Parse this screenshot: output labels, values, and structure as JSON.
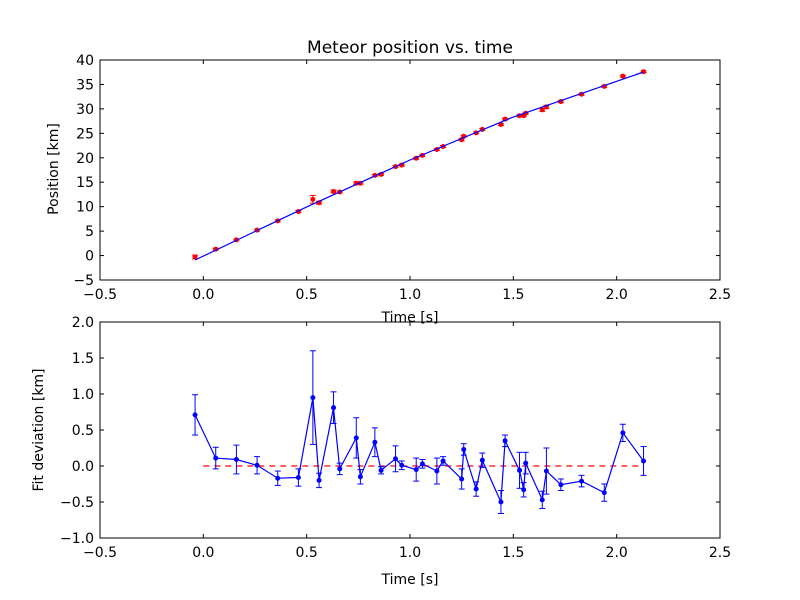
{
  "chart_data": [
    {
      "type": "scatter",
      "title": "Meteor position vs. time",
      "xlabel": "Time [s]",
      "ylabel": "Position [km]",
      "xlim": [
        -0.5,
        2.5
      ],
      "ylim": [
        -5,
        40
      ],
      "xticks": [
        -0.5,
        0.0,
        0.5,
        1.0,
        1.5,
        2.0,
        2.5
      ],
      "xtick_labels": [
        "−0.5",
        "0.0",
        "0.5",
        "1.0",
        "1.5",
        "2.0",
        "2.5"
      ],
      "yticks": [
        -5,
        0,
        5,
        10,
        15,
        20,
        25,
        30,
        35,
        40
      ],
      "ytick_labels": [
        "−5",
        "0",
        "5",
        "10",
        "15",
        "20",
        "25",
        "30",
        "35",
        "40"
      ],
      "grid": false,
      "series": [
        {
          "kind": "errorbar-points",
          "color": "#ff0000",
          "x": [
            -0.04,
            0.06,
            0.16,
            0.26,
            0.36,
            0.46,
            0.53,
            0.56,
            0.63,
            0.66,
            0.74,
            0.76,
            0.83,
            0.86,
            0.93,
            0.96,
            1.03,
            1.06,
            1.13,
            1.16,
            1.25,
            1.26,
            1.32,
            1.35,
            1.44,
            1.46,
            1.53,
            1.55,
            1.56,
            1.64,
            1.66,
            1.73,
            1.83,
            1.94,
            2.03,
            2.13
          ],
          "y": [
            -0.3,
            1.3,
            3.2,
            5.2,
            7.1,
            9.0,
            11.5,
            10.8,
            13.1,
            13.0,
            14.8,
            14.8,
            16.4,
            16.6,
            18.2,
            18.5,
            19.9,
            20.5,
            21.7,
            22.3,
            23.7,
            24.4,
            25.1,
            25.8,
            26.8,
            27.9,
            28.6,
            28.6,
            29.1,
            29.8,
            30.4,
            31.5,
            33.0,
            34.6,
            36.7,
            37.6
          ],
          "yerr": [
            0.4,
            0.2,
            0.2,
            0.2,
            0.2,
            0.2,
            0.8,
            0.3,
            0.3,
            0.2,
            0.3,
            0.2,
            0.2,
            0.2,
            0.2,
            0.2,
            0.2,
            0.2,
            0.2,
            0.2,
            0.2,
            0.2,
            0.2,
            0.2,
            0.2,
            0.2,
            0.2,
            0.2,
            0.2,
            0.3,
            0.3,
            0.2,
            0.2,
            0.2,
            0.2,
            0.2
          ]
        },
        {
          "kind": "line",
          "color": "#0000ff",
          "x": [
            -0.04,
            0.5,
            1.0,
            1.5,
            2.13
          ],
          "y": [
            -0.9,
            9.95,
            19.55,
            28.35,
            37.55
          ]
        }
      ]
    },
    {
      "type": "line",
      "title": "",
      "xlabel": "Time [s]",
      "ylabel": "Fit deviation [km]",
      "xlim": [
        -0.5,
        2.5
      ],
      "ylim": [
        -1.0,
        2.0
      ],
      "xticks": [
        -0.5,
        0.0,
        0.5,
        1.0,
        1.5,
        2.0,
        2.5
      ],
      "xtick_labels": [
        "−0.5",
        "0.0",
        "0.5",
        "1.0",
        "1.5",
        "2.0",
        "2.5"
      ],
      "yticks": [
        -1.0,
        -0.5,
        0.0,
        0.5,
        1.0,
        1.5,
        2.0
      ],
      "ytick_labels": [
        "−1.0",
        "−0.5",
        "0.0",
        "0.5",
        "1.0",
        "1.5",
        "2.0"
      ],
      "grid": false,
      "reference_line": {
        "y": 0.0,
        "color": "#ff0000",
        "style": "dashed"
      },
      "series": [
        {
          "kind": "errorbar-line",
          "color": "#0000ff",
          "x": [
            -0.04,
            0.06,
            0.16,
            0.26,
            0.36,
            0.46,
            0.53,
            0.56,
            0.63,
            0.66,
            0.74,
            0.76,
            0.83,
            0.86,
            0.93,
            0.96,
            1.03,
            1.06,
            1.13,
            1.16,
            1.25,
            1.26,
            1.32,
            1.35,
            1.44,
            1.46,
            1.53,
            1.55,
            1.56,
            1.64,
            1.66,
            1.73,
            1.83,
            1.94,
            2.03,
            2.13
          ],
          "y": [
            0.71,
            0.11,
            0.09,
            0.01,
            -0.17,
            -0.16,
            0.95,
            -0.2,
            0.81,
            -0.04,
            0.39,
            -0.15,
            0.33,
            -0.06,
            0.1,
            0.01,
            -0.05,
            0.03,
            -0.07,
            0.07,
            -0.18,
            0.23,
            -0.32,
            0.08,
            -0.5,
            0.35,
            -0.06,
            -0.33,
            0.04,
            -0.47,
            -0.07,
            -0.26,
            -0.21,
            -0.37,
            0.46,
            0.07
          ],
          "yerr": [
            0.28,
            0.15,
            0.2,
            0.12,
            0.1,
            0.12,
            0.65,
            0.1,
            0.22,
            0.08,
            0.28,
            0.1,
            0.2,
            0.05,
            0.18,
            0.06,
            0.16,
            0.06,
            0.18,
            0.06,
            0.14,
            0.08,
            0.1,
            0.1,
            0.16,
            0.08,
            0.25,
            0.1,
            0.15,
            0.12,
            0.32,
            0.08,
            0.08,
            0.12,
            0.12,
            0.2
          ]
        }
      ]
    }
  ]
}
